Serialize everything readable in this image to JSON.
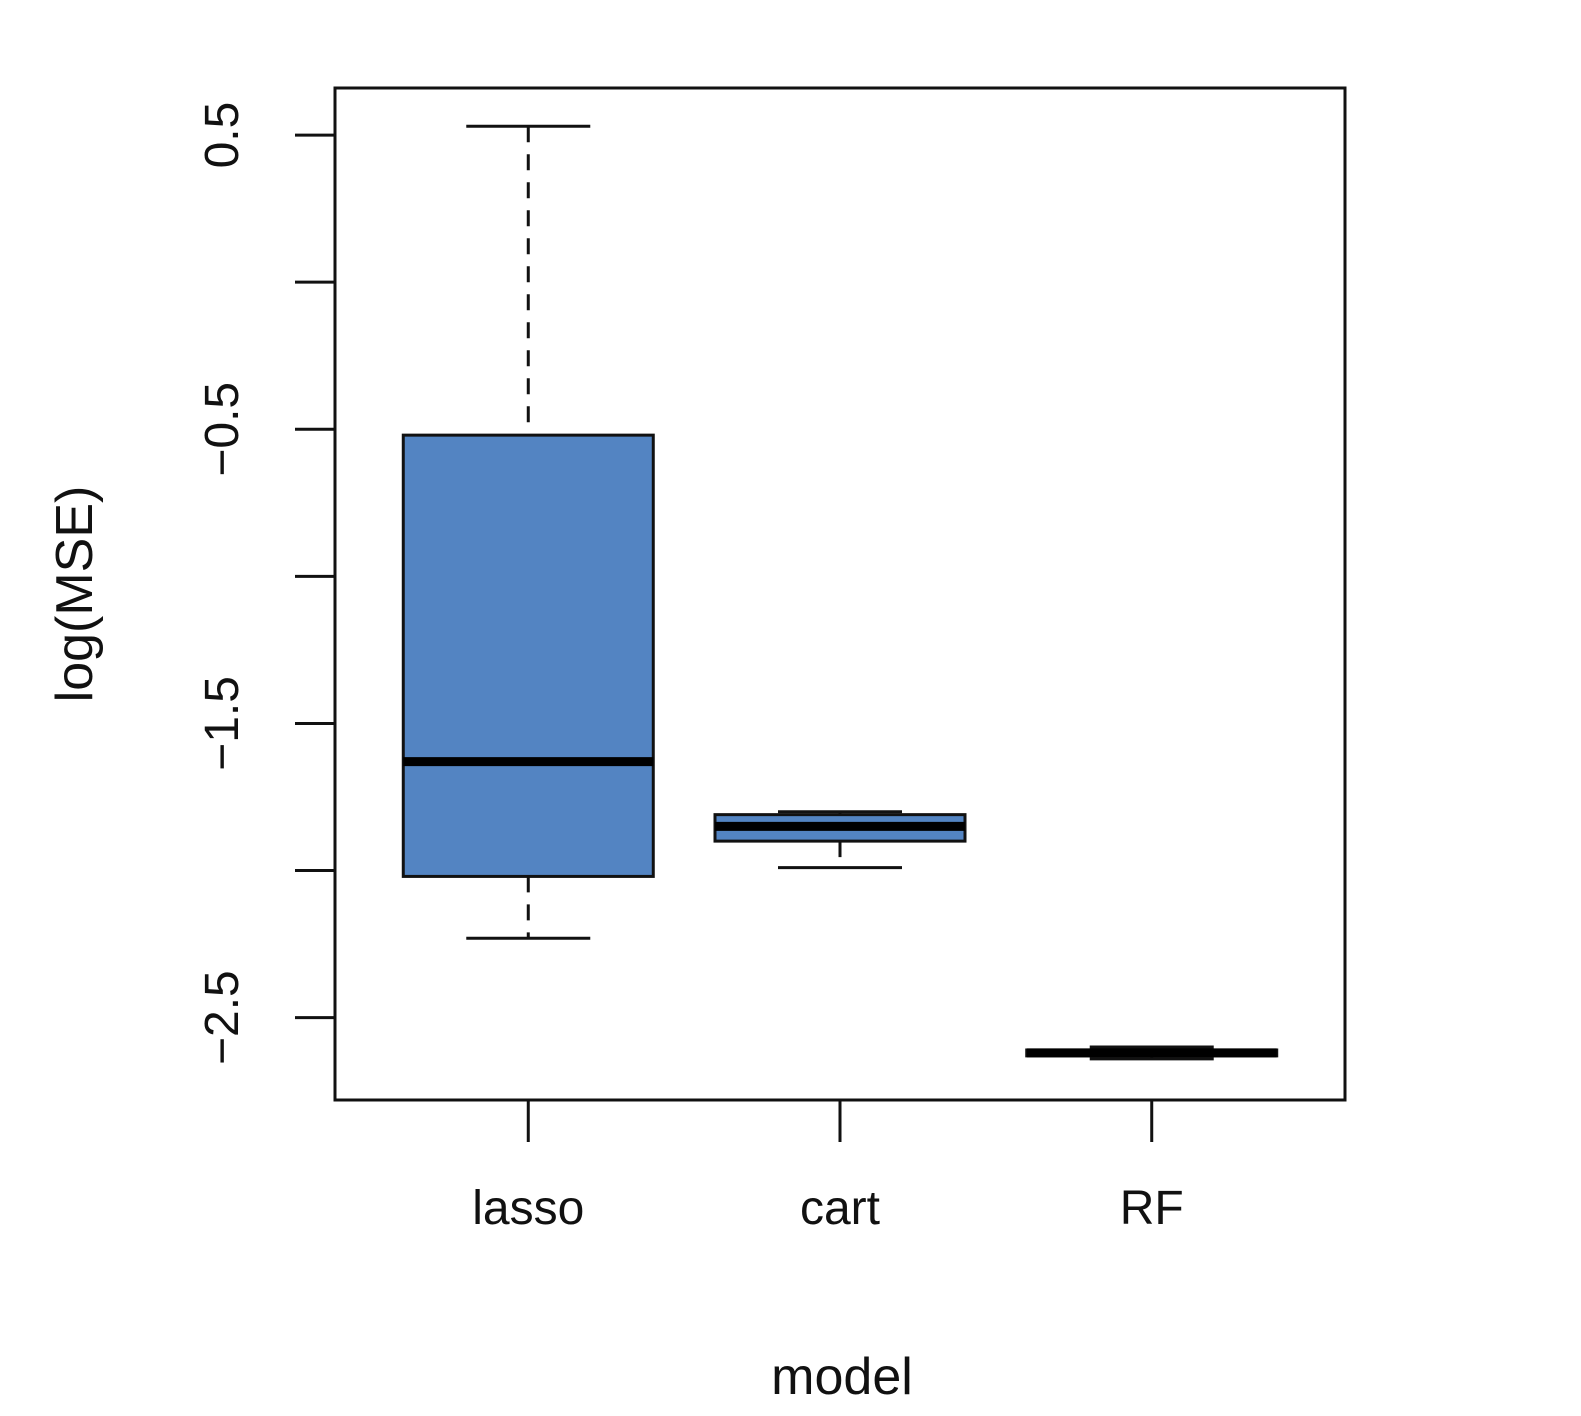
{
  "chart_data": {
    "type": "boxplot",
    "title": "",
    "xlabel": "model",
    "ylabel": "log(MSE)",
    "categories": [
      "lasso",
      "cart",
      "RF"
    ],
    "boxes": [
      {
        "category": "lasso",
        "whisker_low": -2.23,
        "q1": -2.02,
        "median": -1.63,
        "q3": -0.52,
        "whisker_high": 0.53
      },
      {
        "category": "cart",
        "whisker_low": -1.99,
        "q1": -1.9,
        "median": -1.85,
        "q3": -1.81,
        "whisker_high": -1.8
      },
      {
        "category": "RF",
        "whisker_low": -2.64,
        "q1": -2.63,
        "median": -2.62,
        "q3": -2.61,
        "whisker_high": -2.6
      }
    ],
    "yticks": [
      0.5,
      0,
      -0.5,
      -1,
      -1.5,
      -2,
      -2.5
    ],
    "ytick_labels": [
      "0.5",
      "",
      "−0.5",
      "",
      "−1.5",
      "",
      "−2.5"
    ],
    "ylim": [
      -2.78,
      0.66
    ],
    "grid": false,
    "legend": "none",
    "box_fill_color": "#5384c2",
    "box_stroke_color": "#111111"
  }
}
